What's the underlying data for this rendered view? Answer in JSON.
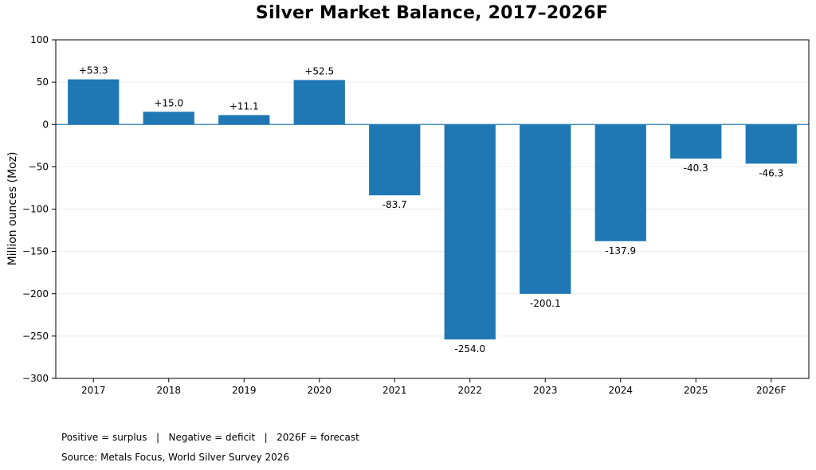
{
  "chart_data": {
    "type": "bar",
    "title": "Silver Market Balance, 2017–2026F",
    "xlabel": "",
    "ylabel": "Million ounces (Moz)",
    "categories": [
      "2017",
      "2018",
      "2019",
      "2020",
      "2021",
      "2022",
      "2023",
      "2024",
      "2025",
      "2026F"
    ],
    "values": [
      53.3,
      15.0,
      11.1,
      52.5,
      -83.7,
      -254.0,
      -200.1,
      -137.9,
      -40.3,
      -46.3
    ],
    "data_labels": [
      "+53.3",
      "+15.0",
      "+11.1",
      "+52.5",
      "-83.7",
      "-254.0",
      "-200.1",
      "-137.9",
      "-40.3",
      "-46.3"
    ],
    "ylim": [
      -300,
      100
    ],
    "yticks": [
      100,
      50,
      0,
      -50,
      -100,
      -150,
      -200,
      -250,
      -300
    ],
    "ytick_labels": [
      "100",
      "50",
      "0",
      "−50",
      "−100",
      "−150",
      "−200",
      "−250",
      "−300"
    ],
    "grid": "horizontal, light",
    "bar_color": "#1f77b4",
    "zero_line_color": "#2c7fb8"
  },
  "notes": {
    "legend_line": "Positive = surplus   |   Negative = deficit   |   2026F = forecast",
    "source_line": "Source: Metals Focus, World Silver Survey 2026"
  }
}
